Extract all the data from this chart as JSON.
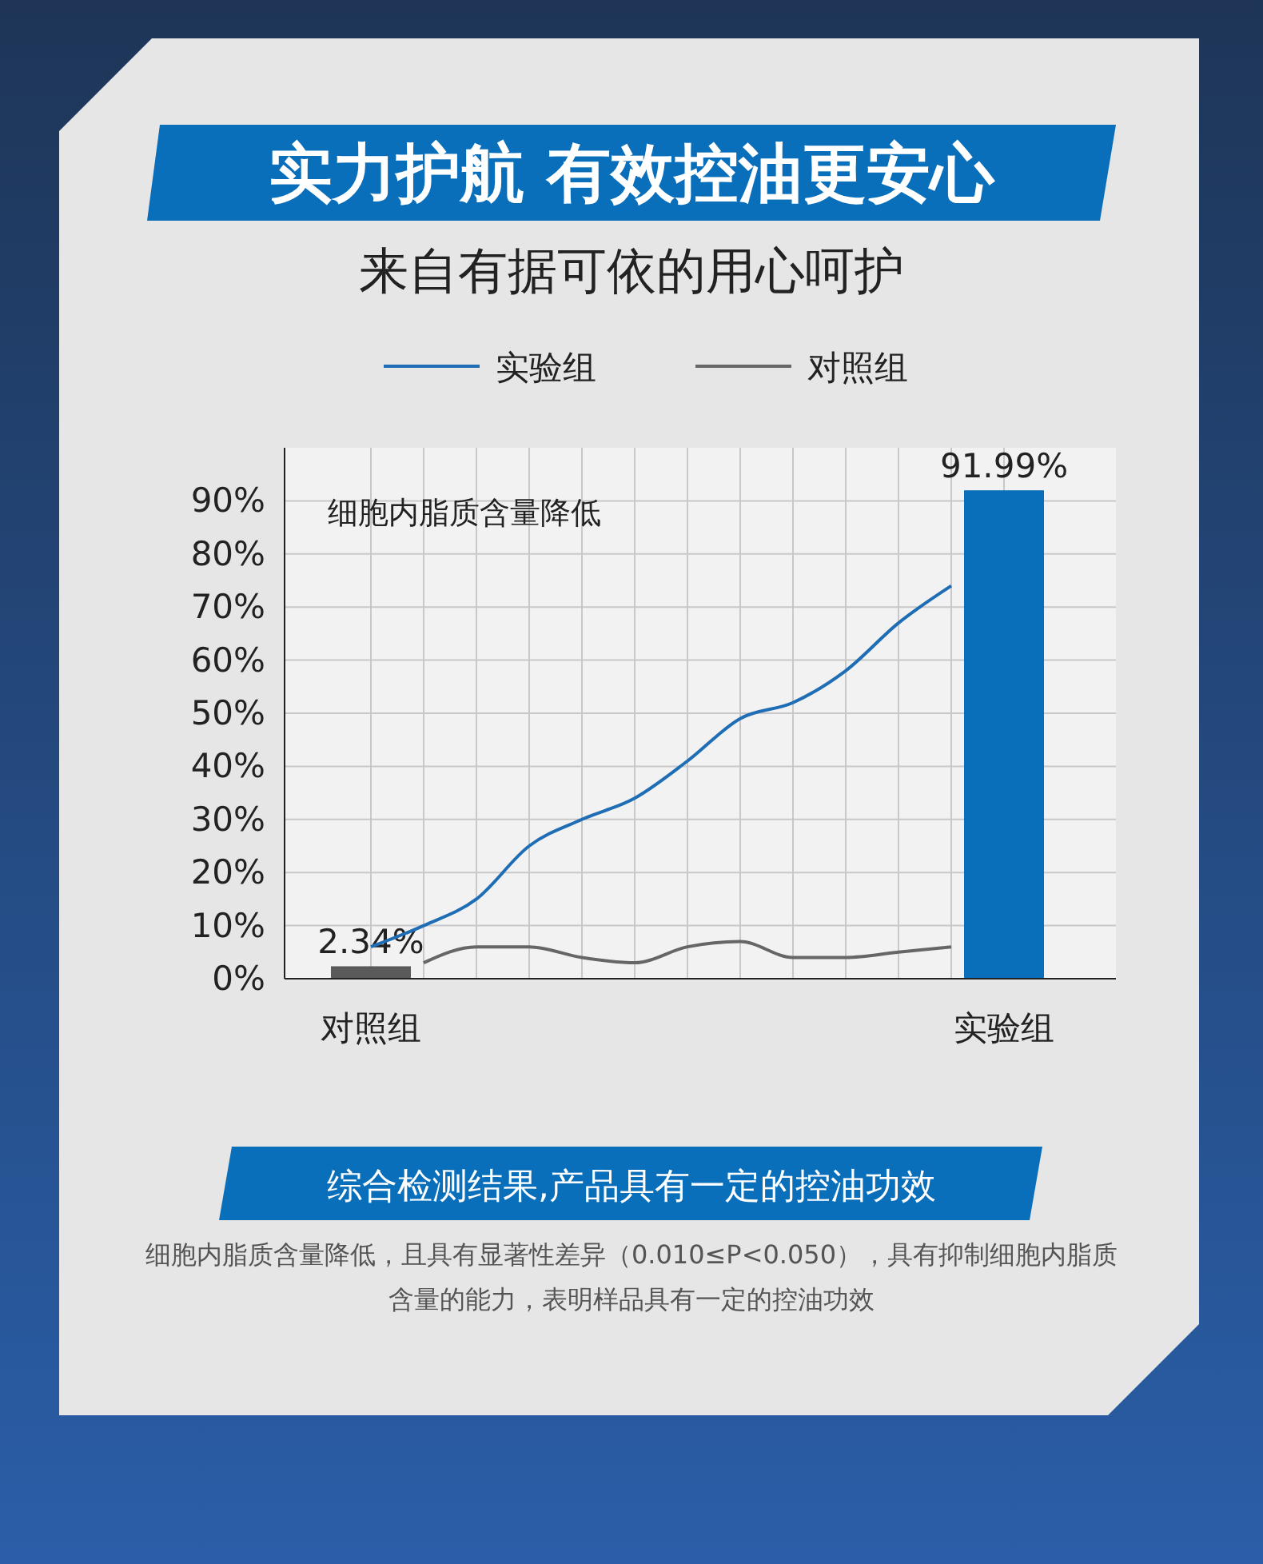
{
  "chart_data": {
    "type": "bar",
    "title": "实力护航 有效控油更安心",
    "subtitle": "来自有据可依的用心呵护",
    "categories": [
      "对照组",
      null,
      null,
      null,
      null,
      null,
      null,
      null,
      null,
      null,
      null,
      null,
      "实验组"
    ],
    "series": [
      {
        "values": [
          2.34,
          null,
          null,
          null,
          null,
          null,
          null,
          null,
          null,
          null,
          null,
          null,
          91.99
        ],
        "colors": [
          "#5a5a5a",
          null,
          null,
          null,
          null,
          null,
          null,
          null,
          null,
          null,
          null,
          null,
          "#0a6fba"
        ],
        "value_labels": [
          "2.34%",
          null,
          null,
          null,
          null,
          null,
          null,
          null,
          null,
          null,
          null,
          null,
          "91.99%"
        ]
      },
      {
        "type": "line",
        "name": "实验组",
        "color": "#1f6db5",
        "values": [
          6,
          10,
          15,
          25,
          30,
          34,
          41,
          49,
          52,
          58,
          67,
          74,
          null
        ]
      },
      {
        "type": "line",
        "name": "对照组",
        "color": "#666666",
        "values": [
          null,
          3,
          6,
          6,
          4,
          3,
          6,
          7,
          4,
          4,
          5,
          6,
          null
        ]
      }
    ],
    "ylim": [
      0,
      100
    ],
    "yticks": [
      {
        "value": 0,
        "label": "0%"
      },
      {
        "value": 10,
        "label": "10%"
      },
      {
        "value": 20,
        "label": "20%"
      },
      {
        "value": 30,
        "label": "30%"
      },
      {
        "value": 40,
        "label": "40%"
      },
      {
        "value": 50,
        "label": "50%"
      },
      {
        "value": 60,
        "label": "60%"
      },
      {
        "value": 70,
        "label": "70%"
      },
      {
        "value": 80,
        "label": "80%"
      },
      {
        "value": 90,
        "label": "90%"
      }
    ],
    "grid": true,
    "legend": "top",
    "annotations": [
      "细胞内脂质含量降低",
      "综合检测结果,产品具有一定的控油功效",
      "细胞内脂质含量降低，且具有显著性差异（0.010≤P<0.050），具有抑制细胞内脂质含量的能力，表明样品具有一定的控油功效"
    ]
  }
}
